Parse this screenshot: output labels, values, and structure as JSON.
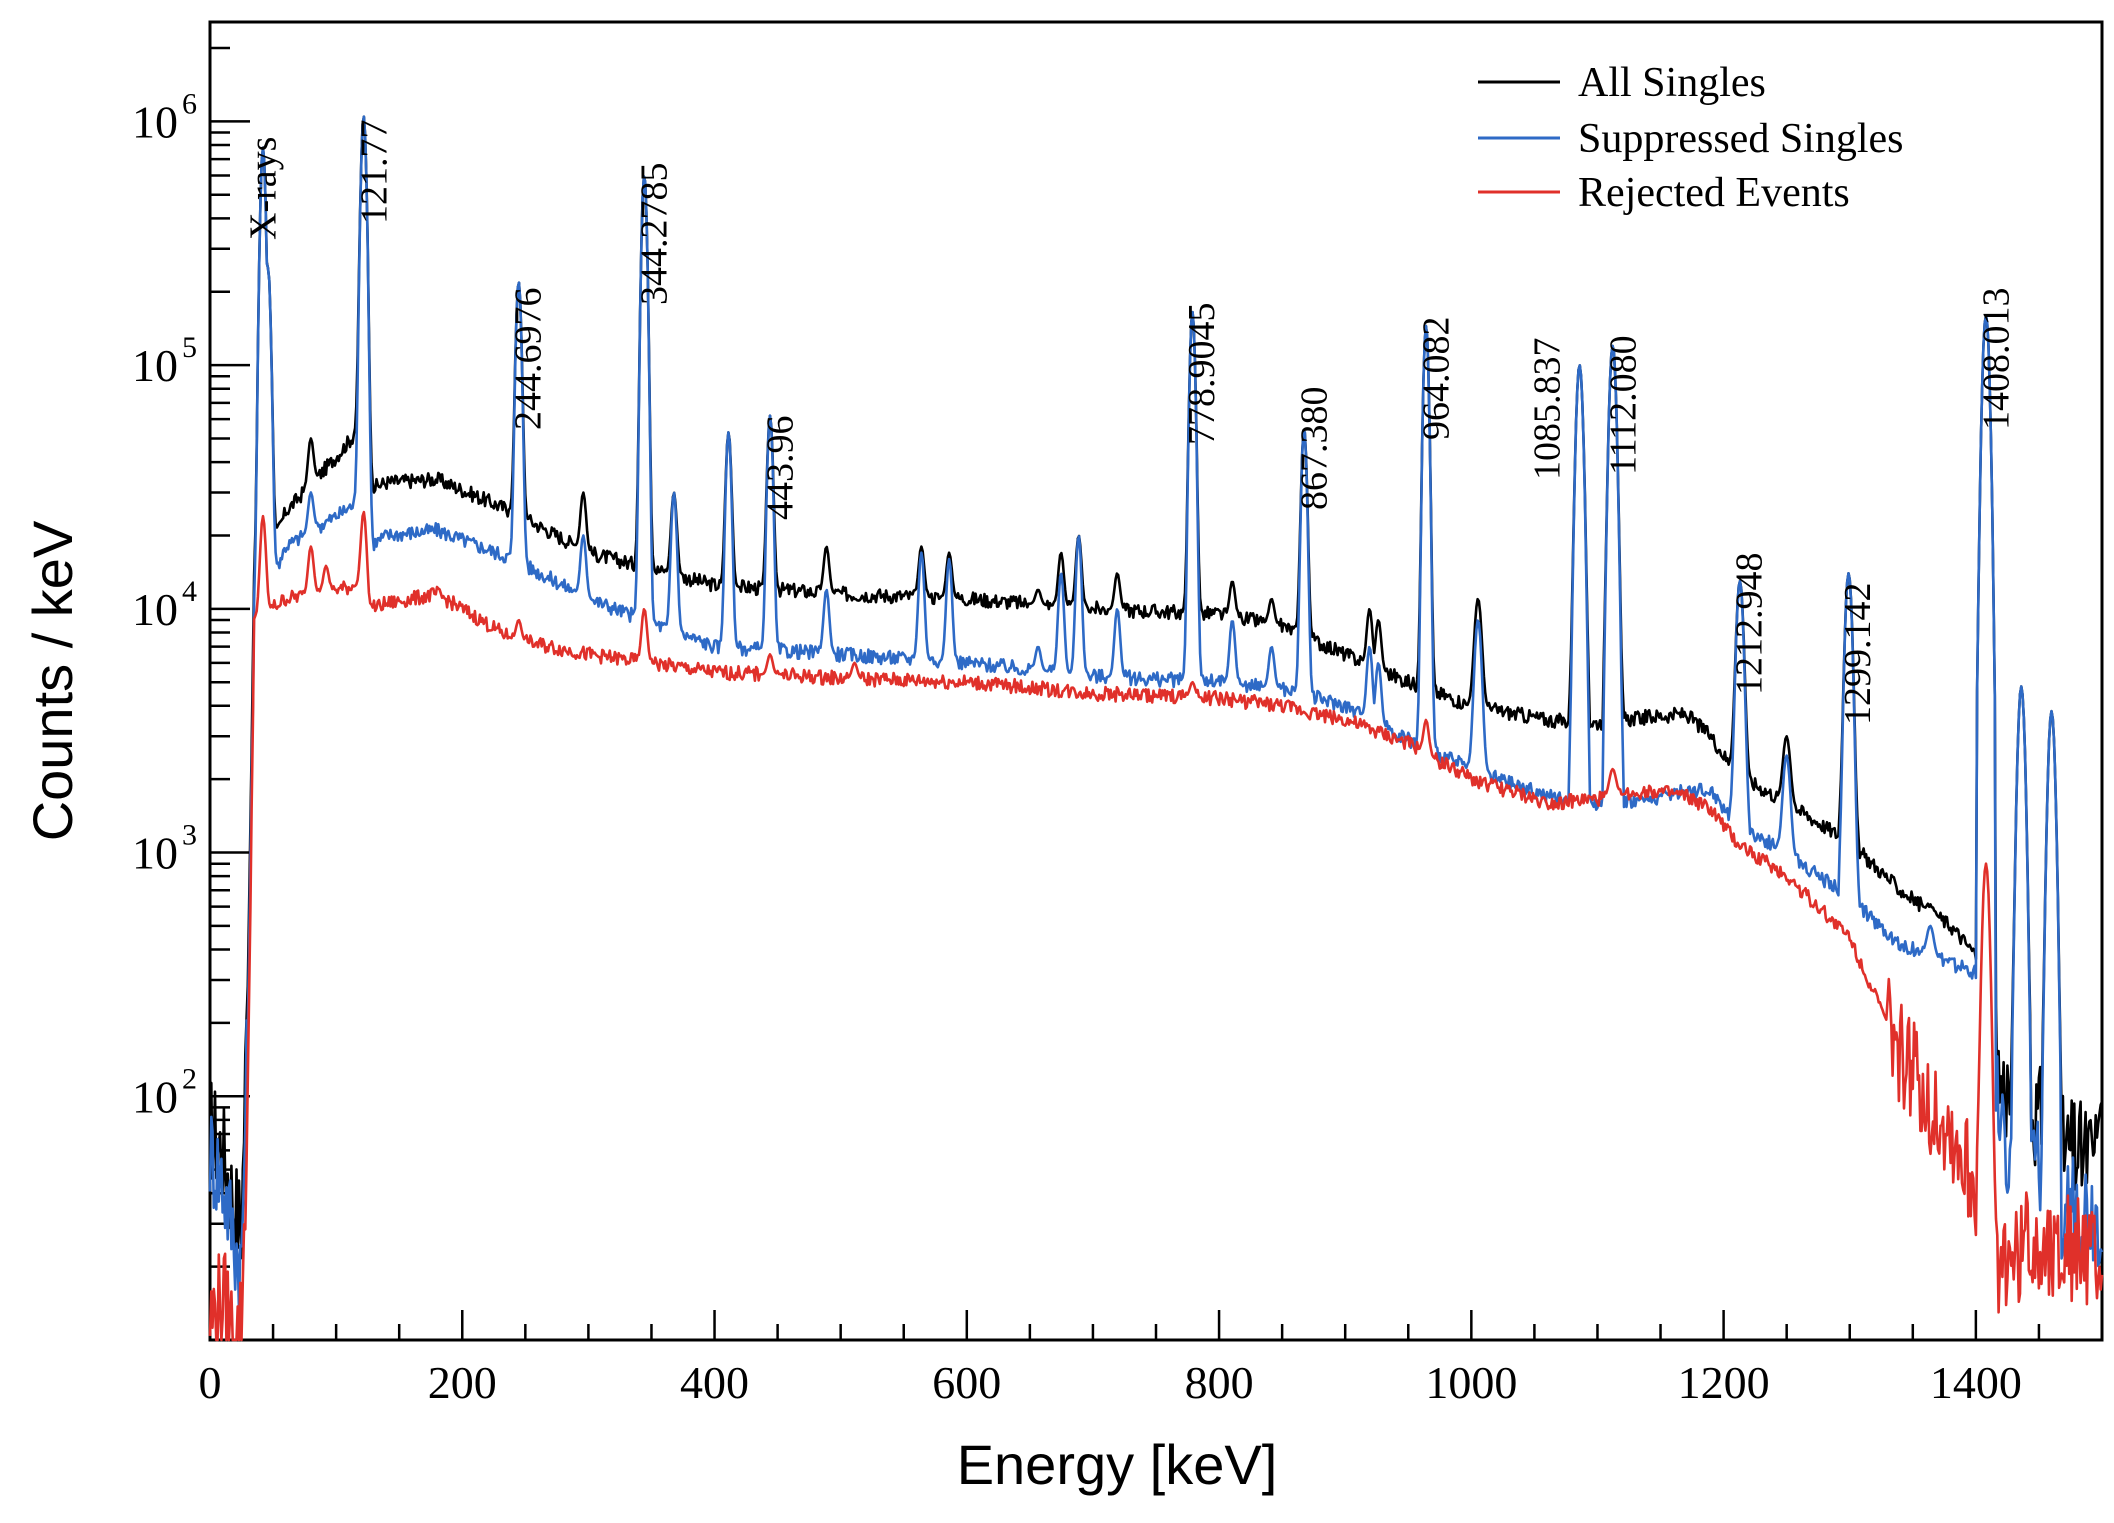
{
  "chart_data": {
    "type": "line",
    "xlabel": "Energy [keV]",
    "ylabel": "Counts / keV",
    "xlim": [
      0,
      1500
    ],
    "ylim": [
      10,
      2000000
    ],
    "y_scale": "log",
    "x_ticks": [
      0,
      200,
      400,
      600,
      800,
      1000,
      1200,
      1400
    ],
    "y_ticks": [
      {
        "value": 100,
        "base": "10",
        "exp": "2"
      },
      {
        "value": 1000,
        "base": "10",
        "exp": "3"
      },
      {
        "value": 10000,
        "base": "10",
        "exp": "4"
      },
      {
        "value": 100000,
        "base": "10",
        "exp": "5"
      },
      {
        "value": 1000000,
        "base": "10",
        "exp": "6"
      }
    ],
    "grid": false,
    "legend_position": "top-right",
    "series": [
      {
        "name": "All Singles",
        "color": "#000000",
        "x": [
          0,
          10,
          20,
          25,
          30,
          35,
          60,
          100,
          120,
          126,
          140,
          180,
          240,
          300,
          400,
          500,
          600,
          700,
          800,
          850,
          900,
          950,
          1000,
          1060,
          1100,
          1140,
          1170,
          1190,
          1210,
          1250,
          1300,
          1340,
          1380,
          1400,
          1410,
          1420,
          1440,
          1470,
          1500
        ],
        "y": [
          75,
          60,
          35,
          30,
          300,
          12000,
          25000,
          42000,
          56000,
          31000,
          33000,
          34000,
          25000,
          17000,
          12500,
          11500,
          11000,
          10000,
          9500,
          8500,
          6500,
          5000,
          4000,
          3500,
          3400,
          3600,
          3700,
          3000,
          2100,
          1600,
          1100,
          700,
          500,
          380,
          200,
          110,
          95,
          60,
          55
        ],
        "peaks": [
          {
            "x": 42,
            "y": 780000
          },
          {
            "x": 46,
            "y": 250000
          },
          {
            "x": 80,
            "y": 50000
          },
          {
            "x": 121.8,
            "y": 1050000
          },
          {
            "x": 244.7,
            "y": 220000
          },
          {
            "x": 295.9,
            "y": 30000
          },
          {
            "x": 344.3,
            "y": 600000
          },
          {
            "x": 367.8,
            "y": 30000
          },
          {
            "x": 411.1,
            "y": 53000
          },
          {
            "x": 444,
            "y": 62000
          },
          {
            "x": 488.7,
            "y": 18000
          },
          {
            "x": 564,
            "y": 18000
          },
          {
            "x": 586,
            "y": 17000
          },
          {
            "x": 656.5,
            "y": 12000
          },
          {
            "x": 674.7,
            "y": 17000
          },
          {
            "x": 688.7,
            "y": 20000
          },
          {
            "x": 719.3,
            "y": 14000
          },
          {
            "x": 778.9,
            "y": 165000
          },
          {
            "x": 810.5,
            "y": 13000
          },
          {
            "x": 841.6,
            "y": 11000
          },
          {
            "x": 867.4,
            "y": 55000
          },
          {
            "x": 919.3,
            "y": 10000
          },
          {
            "x": 926.3,
            "y": 9000
          },
          {
            "x": 964.1,
            "y": 145000
          },
          {
            "x": 1005.3,
            "y": 11000
          },
          {
            "x": 1085.8,
            "y": 100000
          },
          {
            "x": 1112.1,
            "y": 120000
          },
          {
            "x": 1212.9,
            "y": 13000
          },
          {
            "x": 1249.9,
            "y": 3000
          },
          {
            "x": 1299.1,
            "y": 14000
          },
          {
            "x": 1363.8,
            "y": 600
          },
          {
            "x": 1408,
            "y": 160000
          },
          {
            "x": 1436,
            "y": 4800
          },
          {
            "x": 1460,
            "y": 3800
          },
          {
            "x": 1500,
            "y": 95
          }
        ]
      },
      {
        "name": "Suppressed Singles",
        "color": "#2e6ac6",
        "x": [
          0,
          10,
          20,
          25,
          30,
          35,
          60,
          100,
          120,
          126,
          140,
          180,
          240,
          300,
          400,
          500,
          600,
          700,
          800,
          850,
          900,
          950,
          1000,
          1060,
          1100,
          1140,
          1170,
          1190,
          1210,
          1250,
          1300,
          1340,
          1380,
          1400,
          1410,
          1420,
          1440,
          1470,
          1500
        ],
        "y": [
          60,
          45,
          25,
          20,
          200,
          9000,
          18000,
          24000,
          28000,
          18000,
          20000,
          21000,
          16000,
          11000,
          7000,
          6500,
          6000,
          5300,
          5000,
          4700,
          4000,
          2900,
          2200,
          1700,
          1600,
          1650,
          1800,
          1800,
          1300,
          1000,
          650,
          420,
          350,
          320,
          150,
          70,
          55,
          35,
          30
        ],
        "peaks": [
          {
            "x": 42,
            "y": 780000
          },
          {
            "x": 46,
            "y": 250000
          },
          {
            "x": 80,
            "y": 30000
          },
          {
            "x": 121.8,
            "y": 1050000
          },
          {
            "x": 244.7,
            "y": 220000
          },
          {
            "x": 295.9,
            "y": 20000
          },
          {
            "x": 344.3,
            "y": 600000
          },
          {
            "x": 367.8,
            "y": 30000
          },
          {
            "x": 411.1,
            "y": 53000
          },
          {
            "x": 444,
            "y": 62000
          },
          {
            "x": 488.7,
            "y": 12000
          },
          {
            "x": 564,
            "y": 17000
          },
          {
            "x": 586,
            "y": 16000
          },
          {
            "x": 656.5,
            "y": 7000
          },
          {
            "x": 674.7,
            "y": 14000
          },
          {
            "x": 688.7,
            "y": 20000
          },
          {
            "x": 719.3,
            "y": 10000
          },
          {
            "x": 778.9,
            "y": 165000
          },
          {
            "x": 810.5,
            "y": 9000
          },
          {
            "x": 841.6,
            "y": 7000
          },
          {
            "x": 867.4,
            "y": 55000
          },
          {
            "x": 919.3,
            "y": 7000
          },
          {
            "x": 926.3,
            "y": 6000
          },
          {
            "x": 964.1,
            "y": 145000
          },
          {
            "x": 1005.3,
            "y": 9000
          },
          {
            "x": 1085.8,
            "y": 100000
          },
          {
            "x": 1112.1,
            "y": 120000
          },
          {
            "x": 1212.9,
            "y": 13000
          },
          {
            "x": 1249.9,
            "y": 2500
          },
          {
            "x": 1299.1,
            "y": 14000
          },
          {
            "x": 1363.8,
            "y": 500
          },
          {
            "x": 1408,
            "y": 160000
          },
          {
            "x": 1436,
            "y": 4800
          },
          {
            "x": 1460,
            "y": 3800
          }
        ]
      },
      {
        "name": "Rejected Events",
        "color": "#e0302a",
        "x": [
          0,
          10,
          20,
          25,
          30,
          35,
          60,
          100,
          120,
          126,
          140,
          180,
          240,
          300,
          400,
          500,
          600,
          700,
          800,
          850,
          900,
          950,
          1000,
          1060,
          1100,
          1140,
          1170,
          1190,
          1210,
          1250,
          1300,
          1340,
          1380,
          1400,
          1410,
          1420,
          1440,
          1470,
          1500
        ],
        "y": [
          12,
          15,
          10,
          12,
          100,
          9000,
          11000,
          12000,
          12500,
          10000,
          10500,
          11500,
          7500,
          6500,
          5500,
          5200,
          5000,
          4500,
          4300,
          4000,
          3500,
          2800,
          2000,
          1600,
          1650,
          1800,
          1700,
          1500,
          1100,
          800,
          450,
          150,
          70,
          40,
          25,
          20,
          25,
          25,
          20
        ],
        "peaks": [
          {
            "x": 42,
            "y": 24000
          },
          {
            "x": 80,
            "y": 18000
          },
          {
            "x": 92,
            "y": 15000
          },
          {
            "x": 121.8,
            "y": 25000
          },
          {
            "x": 244.7,
            "y": 9000
          },
          {
            "x": 344.3,
            "y": 10000
          },
          {
            "x": 444,
            "y": 6500
          },
          {
            "x": 511,
            "y": 6000
          },
          {
            "x": 778.9,
            "y": 5000
          },
          {
            "x": 964.1,
            "y": 3500
          },
          {
            "x": 1112.1,
            "y": 2200
          },
          {
            "x": 1408,
            "y": 900
          }
        ]
      }
    ],
    "annotations": [
      {
        "text": "X-rays",
        "x": 52
      },
      {
        "text": "121.77",
        "x": 140
      },
      {
        "text": "244.6976",
        "x": 262
      },
      {
        "text": "344.2785",
        "x": 362
      },
      {
        "text": "443.96",
        "x": 462
      },
      {
        "text": "778.9045",
        "x": 796
      },
      {
        "text": "867.380",
        "x": 885
      },
      {
        "text": "964.082",
        "x": 982
      },
      {
        "text": "1085.837",
        "x": 1070
      },
      {
        "text": "1112.080",
        "x": 1130
      },
      {
        "text": "1212.948",
        "x": 1230
      },
      {
        "text": "1299.142",
        "x": 1316
      },
      {
        "text": "1408.013",
        "x": 1426
      }
    ]
  }
}
